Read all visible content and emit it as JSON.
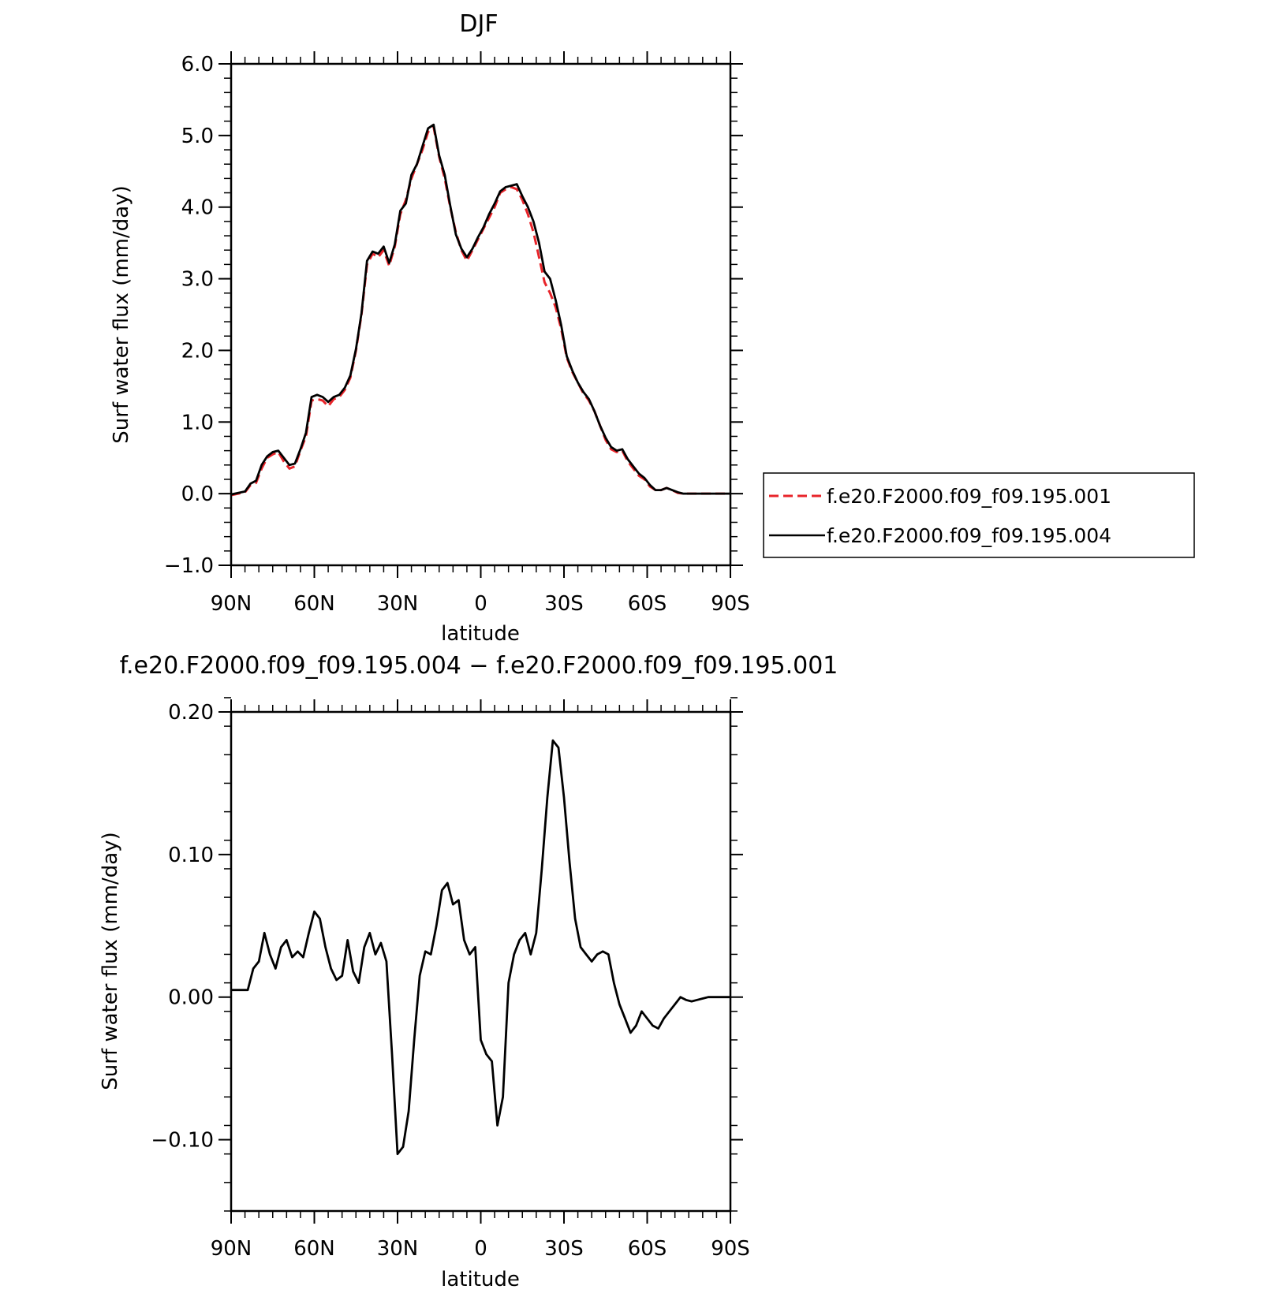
{
  "chart_data": [
    {
      "type": "line",
      "title": "DJF",
      "xlabel": "latitude",
      "ylabel": "Surf water flux (mm/day)",
      "xlim": [
        90,
        -90
      ],
      "ylim": [
        -1.0,
        6.0
      ],
      "xticks": [
        {
          "value": 90,
          "label": "90N"
        },
        {
          "value": 60,
          "label": "60N"
        },
        {
          "value": 30,
          "label": "30N"
        },
        {
          "value": 0,
          "label": "0"
        },
        {
          "value": -30,
          "label": "30S"
        },
        {
          "value": -60,
          "label": "60S"
        },
        {
          "value": -90,
          "label": "90S"
        }
      ],
      "yticks": [
        {
          "value": 6.0,
          "label": "6.0"
        },
        {
          "value": 5.0,
          "label": "5.0"
        },
        {
          "value": 4.0,
          "label": "4.0"
        },
        {
          "value": 3.0,
          "label": "3.0"
        },
        {
          "value": 2.0,
          "label": "2.0"
        },
        {
          "value": 1.0,
          "label": "1.0"
        },
        {
          "value": 0.0,
          "label": "0.0"
        },
        {
          "value": -1.0,
          "label": "−1.0"
        }
      ],
      "legend_position": "right",
      "series": [
        {
          "name": "f.e20.F2000.f09_f09.195.001",
          "color": "#e8242a",
          "dash": "dashed",
          "x": [
            90,
            85,
            83,
            81,
            79,
            77,
            75,
            73,
            71,
            69,
            67,
            65,
            63,
            61,
            59,
            57,
            55,
            53,
            51,
            49,
            47,
            45,
            43,
            41,
            39,
            37,
            35,
            33,
            31,
            29,
            27,
            25,
            23,
            21,
            19,
            17,
            15,
            13,
            11,
            9,
            7,
            5,
            3,
            1,
            -1,
            -3,
            -5,
            -7,
            -9,
            -11,
            -13,
            -15,
            -17,
            -19,
            -21,
            -23,
            -25,
            -27,
            -29,
            -31,
            -33,
            -35,
            -37,
            -39,
            -41,
            -43,
            -45,
            -47,
            -49,
            -51,
            -53,
            -55,
            -57,
            -59,
            -61,
            -63,
            -65,
            -67,
            -69,
            -71,
            -73,
            -75,
            -77,
            -79,
            -81,
            -83,
            -85,
            -87,
            -89,
            -90
          ],
          "y": [
            -0.02,
            0.02,
            0.12,
            0.15,
            0.35,
            0.5,
            0.55,
            0.58,
            0.45,
            0.35,
            0.38,
            0.6,
            0.8,
            1.3,
            1.32,
            1.3,
            1.22,
            1.32,
            1.35,
            1.45,
            1.62,
            2.0,
            2.5,
            3.2,
            3.35,
            3.3,
            3.4,
            3.18,
            3.45,
            3.9,
            4.1,
            4.4,
            4.6,
            4.8,
            5.05,
            5.12,
            4.7,
            4.4,
            4.0,
            3.65,
            3.4,
            3.25,
            3.4,
            3.55,
            3.7,
            3.85,
            4.0,
            4.2,
            4.25,
            4.28,
            4.25,
            4.1,
            3.9,
            3.65,
            3.3,
            2.95,
            2.8,
            2.6,
            2.3,
            1.9,
            1.7,
            1.55,
            1.4,
            1.3,
            1.15,
            0.95,
            0.75,
            0.62,
            0.58,
            0.6,
            0.45,
            0.35,
            0.25,
            0.2,
            0.1,
            0.05,
            0.05,
            0.08,
            0.05,
            0.01,
            0.0,
            0.0,
            0.0,
            0.0,
            0.0,
            0.0,
            0.0,
            0.0,
            0.0,
            0.0
          ]
        },
        {
          "name": "f.e20.F2000.f09_f09.195.004",
          "color": "#000000",
          "dash": "solid",
          "x": [
            90,
            85,
            83,
            81,
            79,
            77,
            75,
            73,
            71,
            69,
            67,
            65,
            63,
            61,
            59,
            57,
            55,
            53,
            51,
            49,
            47,
            45,
            43,
            41,
            39,
            37,
            35,
            33,
            31,
            29,
            27,
            25,
            23,
            21,
            19,
            17,
            15,
            13,
            11,
            9,
            7,
            5,
            3,
            1,
            -1,
            -3,
            -5,
            -7,
            -9,
            -11,
            -13,
            -15,
            -17,
            -19,
            -21,
            -23,
            -25,
            -27,
            -29,
            -31,
            -33,
            -35,
            -37,
            -39,
            -41,
            -43,
            -45,
            -47,
            -49,
            -51,
            -53,
            -55,
            -57,
            -59,
            -61,
            -63,
            -65,
            -67,
            -69,
            -71,
            -73,
            -75,
            -77,
            -79,
            -81,
            -83,
            -85,
            -87,
            -89,
            -90
          ],
          "y": [
            -0.01,
            0.03,
            0.14,
            0.18,
            0.4,
            0.52,
            0.58,
            0.6,
            0.5,
            0.4,
            0.42,
            0.62,
            0.85,
            1.35,
            1.38,
            1.35,
            1.28,
            1.35,
            1.38,
            1.48,
            1.65,
            2.02,
            2.52,
            3.25,
            3.38,
            3.35,
            3.45,
            3.22,
            3.48,
            3.95,
            4.05,
            4.45,
            4.6,
            4.85,
            5.1,
            5.15,
            4.72,
            4.45,
            4.02,
            3.62,
            3.42,
            3.3,
            3.42,
            3.58,
            3.72,
            3.9,
            4.05,
            4.22,
            4.28,
            4.3,
            4.32,
            4.15,
            4.0,
            3.8,
            3.5,
            3.1,
            3.0,
            2.7,
            2.35,
            1.92,
            1.72,
            1.55,
            1.42,
            1.32,
            1.15,
            0.95,
            0.78,
            0.65,
            0.6,
            0.62,
            0.48,
            0.38,
            0.28,
            0.22,
            0.12,
            0.05,
            0.05,
            0.08,
            0.05,
            0.02,
            0.0,
            0.0,
            0.0,
            0.0,
            0.0,
            0.0,
            0.0,
            0.0,
            0.0,
            0.0
          ]
        }
      ]
    },
    {
      "type": "line",
      "title": "f.e20.F2000.f09_f09.195.004 − f.e20.F2000.f09_f09.195.001",
      "xlabel": "latitude",
      "ylabel": "Surf water flux (mm/day)",
      "xlim": [
        90,
        -90
      ],
      "ylim": [
        -0.15,
        0.2
      ],
      "xticks": [
        {
          "value": 90,
          "label": "90N"
        },
        {
          "value": 60,
          "label": "60N"
        },
        {
          "value": 30,
          "label": "30N"
        },
        {
          "value": 0,
          "label": "0"
        },
        {
          "value": -30,
          "label": "30S"
        },
        {
          "value": -60,
          "label": "60S"
        },
        {
          "value": -90,
          "label": "90S"
        }
      ],
      "yticks": [
        {
          "value": 0.2,
          "label": "0.20"
        },
        {
          "value": 0.1,
          "label": "0.10"
        },
        {
          "value": 0.0,
          "label": "0.00"
        },
        {
          "value": -0.1,
          "label": "−0.10"
        }
      ],
      "series": [
        {
          "color": "#000000",
          "dash": "solid",
          "x": [
            90,
            88,
            86,
            84,
            82,
            80,
            78,
            76,
            74,
            72,
            70,
            68,
            66,
            64,
            62,
            60,
            58,
            56,
            54,
            52,
            50,
            48,
            46,
            44,
            42,
            40,
            38,
            36,
            34,
            32,
            30,
            28,
            26,
            24,
            22,
            20,
            18,
            16,
            14,
            12,
            10,
            8,
            6,
            4,
            2,
            0,
            -2,
            -4,
            -6,
            -8,
            -10,
            -12,
            -14,
            -16,
            -18,
            -20,
            -22,
            -24,
            -26,
            -28,
            -30,
            -32,
            -34,
            -36,
            -38,
            -40,
            -42,
            -44,
            -46,
            -48,
            -50,
            -52,
            -54,
            -56,
            -58,
            -60,
            -62,
            -64,
            -66,
            -68,
            -70,
            -72,
            -74,
            -76,
            -78,
            -80,
            -82,
            -84,
            -86,
            -88,
            -90
          ],
          "y": [
            0.005,
            0.005,
            0.005,
            0.005,
            0.02,
            0.025,
            0.045,
            0.03,
            0.02,
            0.035,
            0.04,
            0.028,
            0.032,
            0.028,
            0.045,
            0.06,
            0.055,
            0.035,
            0.02,
            0.012,
            0.015,
            0.04,
            0.018,
            0.01,
            0.035,
            0.045,
            0.03,
            0.038,
            0.025,
            -0.04,
            -0.11,
            -0.105,
            -0.08,
            -0.03,
            0.015,
            0.032,
            0.03,
            0.05,
            0.075,
            0.08,
            0.065,
            0.068,
            0.04,
            0.03,
            0.035,
            -0.03,
            -0.04,
            -0.045,
            -0.09,
            -0.07,
            0.01,
            0.03,
            0.04,
            0.045,
            0.03,
            0.045,
            0.09,
            0.14,
            0.18,
            0.175,
            0.14,
            0.095,
            0.055,
            0.035,
            0.03,
            0.025,
            0.03,
            0.032,
            0.03,
            0.01,
            -0.005,
            -0.015,
            -0.025,
            -0.02,
            -0.01,
            -0.015,
            -0.02,
            -0.022,
            -0.015,
            -0.01,
            -0.005,
            0.0,
            -0.002,
            -0.003,
            -0.002,
            -0.001,
            0.0,
            0.0,
            0.0,
            0.0,
            0.0
          ]
        }
      ]
    }
  ]
}
